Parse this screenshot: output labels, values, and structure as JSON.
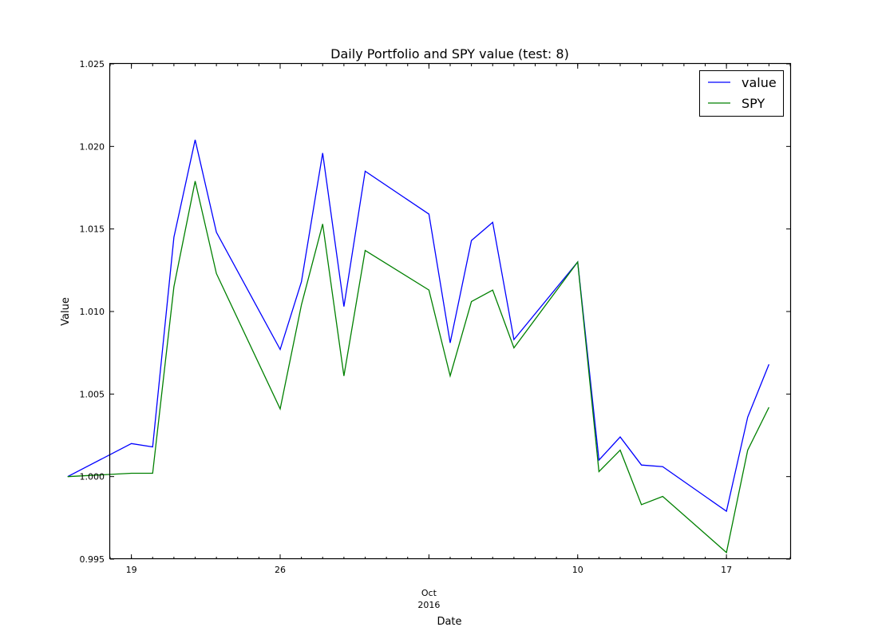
{
  "chart_data": {
    "type": "line",
    "title": "Daily Portfolio and SPY value (test: 8)",
    "xlabel": "Date",
    "ylabel": "Value",
    "x": [
      "2016-09-16",
      "2016-09-19",
      "2016-09-20",
      "2016-09-21",
      "2016-09-22",
      "2016-09-23",
      "2016-09-26",
      "2016-09-27",
      "2016-09-28",
      "2016-09-29",
      "2016-09-30",
      "2016-10-03",
      "2016-10-04",
      "2016-10-05",
      "2016-10-06",
      "2016-10-07",
      "2016-10-10",
      "2016-10-11",
      "2016-10-12",
      "2016-10-13",
      "2016-10-14",
      "2016-10-17",
      "2016-10-18",
      "2016-10-19"
    ],
    "xlim": [
      "2016-09-18",
      "2016-10-20"
    ],
    "x_tick_labels": [
      {
        "date": "2016-09-19",
        "label": "19"
      },
      {
        "date": "2016-09-26",
        "label": "26"
      },
      {
        "date": "2016-10-03",
        "label": "Oct\n2016"
      },
      {
        "date": "2016-10-10",
        "label": "10"
      },
      {
        "date": "2016-10-17",
        "label": "17"
      }
    ],
    "ylim": [
      0.995,
      1.025
    ],
    "y_ticks": [
      "0.995",
      "1.000",
      "1.005",
      "1.010",
      "1.015",
      "1.020",
      "1.025"
    ],
    "grid": false,
    "legend_position": "top-right",
    "series": [
      {
        "name": "value",
        "color": "#0000ff",
        "values": [
          1.0,
          1.002,
          1.0018,
          1.0145,
          1.0204,
          1.0148,
          1.0077,
          1.0118,
          1.0196,
          1.0103,
          1.0185,
          1.0159,
          1.0081,
          1.0143,
          1.0154,
          1.0083,
          1.013,
          1.001,
          1.0024,
          1.0007,
          1.0006,
          0.9979,
          1.0036,
          1.0068
        ]
      },
      {
        "name": "SPY",
        "color": "#008000",
        "values": [
          1.0,
          1.0002,
          1.0002,
          1.0115,
          1.0179,
          1.0123,
          1.0041,
          1.0104,
          1.0153,
          1.0061,
          1.0137,
          1.0113,
          1.0061,
          1.0106,
          1.0113,
          1.0078,
          1.013,
          1.0003,
          1.0016,
          0.9983,
          0.9988,
          0.9954,
          1.0016,
          1.0042
        ]
      }
    ]
  }
}
